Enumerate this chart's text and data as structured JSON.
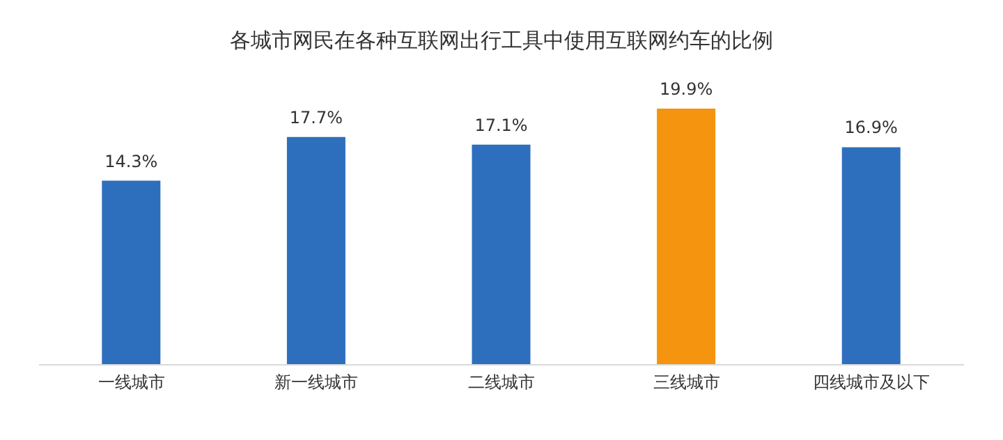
{
  "chart_data": {
    "type": "bar",
    "title": "各城市网民在各种互联网出行工具中使用互联网约车的比例",
    "categories": [
      "一线城市",
      "新一线城市",
      "二线城市",
      "三线城市",
      "四线城市及以下"
    ],
    "values": [
      14.3,
      17.7,
      17.1,
      19.9,
      16.9
    ],
    "colors": [
      "#2e6fbd",
      "#2e6fbd",
      "#2e6fbd",
      "#f5940f",
      "#2e6fbd"
    ],
    "value_labels": [
      "14.3%",
      "17.7%",
      "17.1%",
      "19.9%",
      "16.9%"
    ]
  }
}
